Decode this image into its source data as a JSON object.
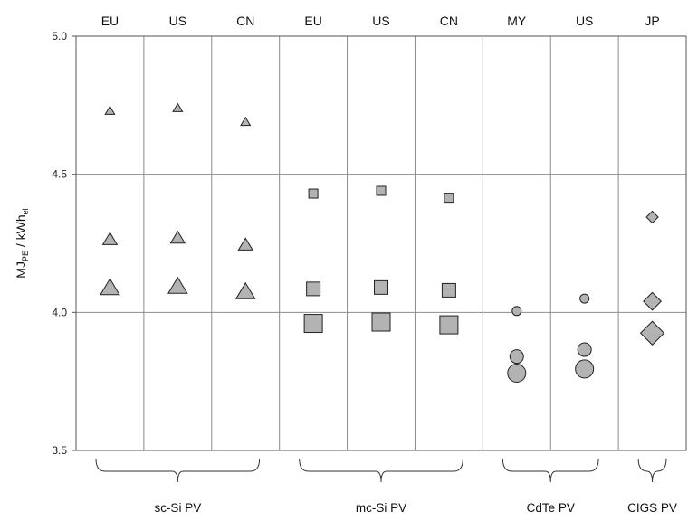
{
  "chart_data": {
    "type": "scatter",
    "ylabel": {
      "main": "MJ",
      "sub1": "PE",
      "mid": " / kWh",
      "sub2": "el"
    },
    "ylim": [
      3.5,
      5.0
    ],
    "yticks": [
      "3.5",
      "4.0",
      "4.5",
      "5.0"
    ],
    "grid": true,
    "columns": [
      {
        "label": "EU",
        "group": "sc-Si PV",
        "shape": "triangle",
        "values": [
          4.73,
          4.265,
          4.09
        ]
      },
      {
        "label": "US",
        "group": "sc-Si PV",
        "shape": "triangle",
        "values": [
          4.74,
          4.27,
          4.095
        ]
      },
      {
        "label": "CN",
        "group": "sc-Si PV",
        "shape": "triangle",
        "values": [
          4.69,
          4.245,
          4.075
        ]
      },
      {
        "label": "EU",
        "group": "mc-Si PV",
        "shape": "square",
        "values": [
          4.43,
          4.085,
          3.96
        ]
      },
      {
        "label": "US",
        "group": "mc-Si PV",
        "shape": "square",
        "values": [
          4.44,
          4.09,
          3.965
        ]
      },
      {
        "label": "CN",
        "group": "mc-Si PV",
        "shape": "square",
        "values": [
          4.415,
          4.08,
          3.955
        ]
      },
      {
        "label": "MY",
        "group": "CdTe PV",
        "shape": "circle",
        "values": [
          4.005,
          3.84,
          3.78
        ]
      },
      {
        "label": "US",
        "group": "CdTe PV",
        "shape": "circle",
        "values": [
          4.05,
          3.865,
          3.795
        ]
      },
      {
        "label": "JP",
        "group": "CIGS PV",
        "shape": "diamond",
        "values": [
          4.345,
          4.04,
          3.925
        ]
      }
    ],
    "groups": [
      "sc-Si PV",
      "mc-Si PV",
      "CdTe PV",
      "CIGS PV"
    ],
    "marker_color": "#b3b3b3",
    "marker_edge": "#222222"
  }
}
